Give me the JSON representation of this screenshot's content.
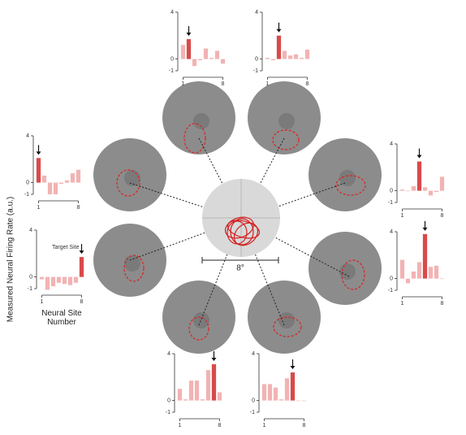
{
  "chart_data": [
    {
      "type": "bar",
      "x": [
        1,
        2,
        3,
        4,
        5,
        6,
        7,
        8
      ],
      "values": [
        1.2,
        1.7,
        -0.6,
        -0.1,
        0.9,
        0.1,
        0.7,
        -0.4
      ],
      "colors": [
        "#f2b3b3",
        "#d94a4a",
        "#f2b3b3",
        "#f2b3b3",
        "#f2b3b3",
        "#f2b3b3",
        "#f2b3b3",
        "#f2b3b3"
      ],
      "xlim": [
        0.5,
        8.5
      ],
      "xticks": [
        1,
        8
      ],
      "ylim": [
        -1,
        4
      ],
      "yticks": [
        -1,
        0,
        4
      ]
    },
    {
      "type": "bar",
      "x": [
        1,
        2,
        3,
        4,
        5,
        6,
        7,
        8
      ],
      "values": [
        0.1,
        -0.1,
        2.0,
        0.7,
        0.3,
        0.4,
        0.1,
        0.8
      ],
      "colors": [
        "#f2b3b3",
        "#f2b3b3",
        "#d94a4a",
        "#f2b3b3",
        "#f2b3b3",
        "#f2b3b3",
        "#f2b3b3",
        "#f2b3b3"
      ],
      "xlim": [
        0.5,
        8.5
      ],
      "xticks": [
        1,
        8
      ],
      "ylim": [
        -1,
        4
      ],
      "yticks": [
        -1,
        0,
        4
      ]
    },
    {
      "type": "bar",
      "x": [
        1,
        2,
        3,
        4,
        5,
        6,
        7,
        8
      ],
      "values": [
        0.1,
        0.0,
        0.4,
        2.5,
        0.3,
        -0.4,
        -0.1,
        1.2
      ],
      "colors": [
        "#f2b3b3",
        "#f2b3b3",
        "#f2b3b3",
        "#d94a4a",
        "#f2b3b3",
        "#f2b3b3",
        "#f2b3b3",
        "#f2b3b3"
      ],
      "xlim": [
        0.5,
        8.5
      ],
      "xticks": [
        1,
        8
      ],
      "ylim": [
        -1,
        4
      ],
      "yticks": [
        -1,
        0,
        4
      ]
    },
    {
      "type": "bar",
      "x": [
        1,
        2,
        3,
        4,
        5,
        6,
        7,
        8
      ],
      "values": [
        1.6,
        -0.4,
        0.6,
        1.4,
        3.8,
        1.0,
        1.1,
        0.0
      ],
      "colors": [
        "#f2b3b3",
        "#f2b3b3",
        "#f2b3b3",
        "#f2b3b3",
        "#d94a4a",
        "#f2b3b3",
        "#f2b3b3",
        "#f2b3b3"
      ],
      "xlim": [
        0.5,
        8.5
      ],
      "xticks": [
        1,
        8
      ],
      "ylim": [
        -1,
        4
      ],
      "yticks": [
        -1,
        0,
        4
      ]
    },
    {
      "type": "bar",
      "x": [
        1,
        2,
        3,
        4,
        5,
        6,
        7,
        8
      ],
      "values": [
        1.4,
        1.4,
        1.1,
        0.1,
        1.9,
        2.4,
        0.0,
        0.0
      ],
      "colors": [
        "#f2b3b3",
        "#f2b3b3",
        "#f2b3b3",
        "#f2b3b3",
        "#f2b3b3",
        "#d94a4a",
        "#f2b3b3",
        "#f2b3b3"
      ],
      "xlim": [
        0.5,
        8.5
      ],
      "xticks": [
        1,
        8
      ],
      "ylim": [
        -1,
        4
      ],
      "yticks": [
        -1,
        0,
        4
      ]
    },
    {
      "type": "bar",
      "x": [
        1,
        2,
        3,
        4,
        5,
        6,
        7,
        8
      ],
      "values": [
        1.0,
        0.1,
        1.7,
        1.7,
        0.1,
        2.6,
        3.1,
        0.7
      ],
      "colors": [
        "#f2b3b3",
        "#f2b3b3",
        "#f2b3b3",
        "#f2b3b3",
        "#f2b3b3",
        "#f2b3b3",
        "#d94a4a",
        "#f2b3b3"
      ],
      "xlim": [
        0.5,
        8.5
      ],
      "xticks": [
        1,
        8
      ],
      "ylim": [
        -1,
        4
      ],
      "yticks": [
        -1,
        0,
        4
      ]
    },
    {
      "type": "bar",
      "x": [
        1,
        2,
        3,
        4,
        5,
        6,
        7,
        8
      ],
      "values": [
        -0.2,
        -1.1,
        -0.8,
        -0.5,
        -0.6,
        -0.7,
        -0.5,
        1.7
      ],
      "colors": [
        "#f2b3b3",
        "#f2b3b3",
        "#f2b3b3",
        "#f2b3b3",
        "#f2b3b3",
        "#f2b3b3",
        "#f2b3b3",
        "#d94a4a"
      ],
      "xlim": [
        0.5,
        8.5
      ],
      "xticks": [
        1,
        8
      ],
      "ylim": [
        -1,
        4
      ],
      "yticks": [
        -1,
        0,
        4
      ],
      "ylabel": "Measured Neural Firing Rate (a.u.)",
      "xlabel": "Neural Site Number",
      "annotation": "Target Site"
    },
    {
      "type": "bar",
      "x": [
        1,
        2,
        3,
        4,
        5,
        6,
        7,
        8
      ],
      "values": [
        2.1,
        0.6,
        -1.0,
        -1.0,
        -0.1,
        0.2,
        0.8,
        1.1
      ],
      "colors": [
        "#d94a4a",
        "#f2b3b3",
        "#f2b3b3",
        "#f2b3b3",
        "#f2b3b3",
        "#f2b3b3",
        "#f2b3b3",
        "#f2b3b3"
      ],
      "xlim": [
        0.5,
        8.5
      ],
      "xticks": [
        1,
        8
      ],
      "ylim": [
        -1,
        4
      ],
      "yticks": [
        -1,
        0,
        4
      ]
    }
  ],
  "center": {
    "scale_label": "8°"
  }
}
